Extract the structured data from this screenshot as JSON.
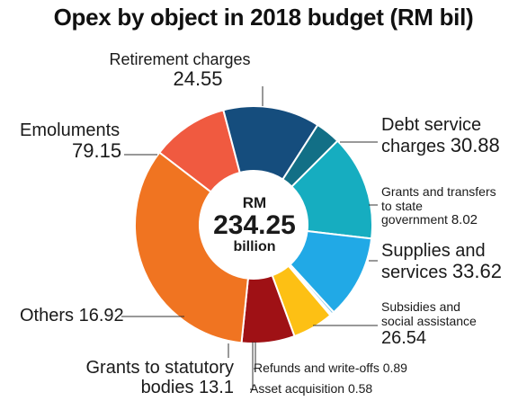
{
  "chart_data": {
    "type": "pie",
    "title": "Opex by object in 2018 budget (RM bil)",
    "center": {
      "line1": "RM",
      "line2": "234.25",
      "line3": "billion"
    },
    "slices": [
      {
        "label": "Retirement charges",
        "value": 24.55,
        "value_text": "24.55",
        "color": "#f05a40"
      },
      {
        "label": "Debt service charges",
        "value": 30.88,
        "value_text": "30.88",
        "color": "#154d7d"
      },
      {
        "label": "Grants and transfers to state government",
        "value": 8.02,
        "value_text": "8.02",
        "color": "#126f86"
      },
      {
        "label": "Supplies and services",
        "value": 33.62,
        "value_text": "33.62",
        "color": "#16adc0"
      },
      {
        "label": "Subsidies and social assistance",
        "value": 26.54,
        "value_text": "26.54",
        "color": "#21a9e6"
      },
      {
        "label": "Refunds and write-offs",
        "value": 0.89,
        "value_text": "0.89",
        "color": "#8bc9ea"
      },
      {
        "label": "Asset acquisition",
        "value": 0.58,
        "value_text": "0.58",
        "color": "#c9d7dd"
      },
      {
        "label": "Grants to statutory bodies",
        "value": 13.1,
        "value_text": "13.1",
        "color": "#fdc014"
      },
      {
        "label": "Others",
        "value": 16.92,
        "value_text": "16.92",
        "color": "#9f1115"
      },
      {
        "label": "Emoluments",
        "value": 79.15,
        "value_text": "79.15",
        "color": "#f07421"
      }
    ]
  },
  "labels": {
    "retirement": {
      "line1": "Retirement charges",
      "line2": "24.55"
    },
    "debt": {
      "line1": "Debt service",
      "line2a": "charges ",
      "line2b": "30.88"
    },
    "grants_state": {
      "line1": "Grants and transfers",
      "line2": "to state",
      "line3a": "government ",
      "line3b": "8.02"
    },
    "supplies": {
      "line1": "Supplies and",
      "line2a": "services ",
      "line2b": "33.62"
    },
    "subsidies": {
      "line1": "Subsidies and",
      "line2": "social assistance",
      "line3": "26.54"
    },
    "refunds": {
      "text": "Refunds and write-offs 0.89"
    },
    "asset": {
      "text": "Asset acquisition 0.58"
    },
    "statutory": {
      "line1": "Grants to statutory",
      "line2a": "bodies ",
      "line2b": "13.1"
    },
    "others": {
      "line1a": "Others ",
      "line1b": "16.92"
    },
    "emoluments": {
      "line1": "Emoluments",
      "line2": "79.15"
    }
  }
}
